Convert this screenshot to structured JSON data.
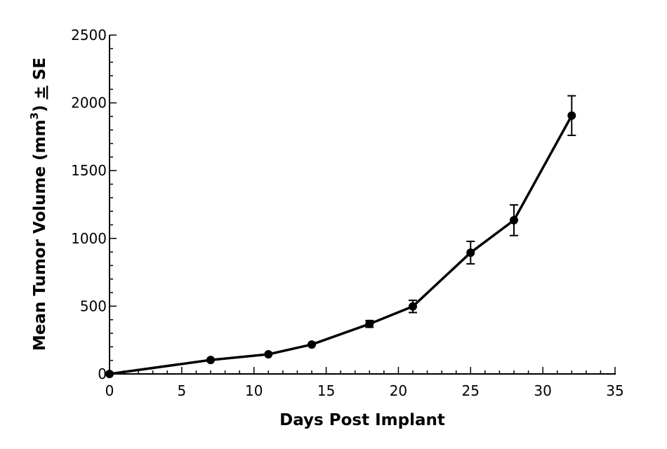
{
  "chart_data": {
    "type": "line",
    "title": "",
    "xlabel": "Days Post Implant",
    "ylabel": {
      "main": "Mean Tumor Volume (mm",
      "superscript": "3",
      "suffix": ") ",
      "pm": "±",
      "se": " SE"
    },
    "xlim": [
      0,
      35
    ],
    "ylim": [
      0,
      2500
    ],
    "x_ticks": [
      0,
      5,
      10,
      15,
      20,
      25,
      30,
      35
    ],
    "y_ticks": [
      0,
      500,
      1000,
      1500,
      2000,
      2500
    ],
    "x_minor_step": 1,
    "y_minor_step": 100,
    "grid": false,
    "series": [
      {
        "name": "Mean Tumor Volume",
        "color": "#000000",
        "x": [
          0,
          7,
          11,
          14,
          18,
          21,
          25,
          28,
          32
        ],
        "y": [
          0,
          103,
          145,
          217,
          369,
          498,
          895,
          1134,
          1906
        ],
        "error": [
          0,
          0,
          0,
          0,
          25,
          45,
          83,
          113,
          146
        ]
      }
    ]
  }
}
